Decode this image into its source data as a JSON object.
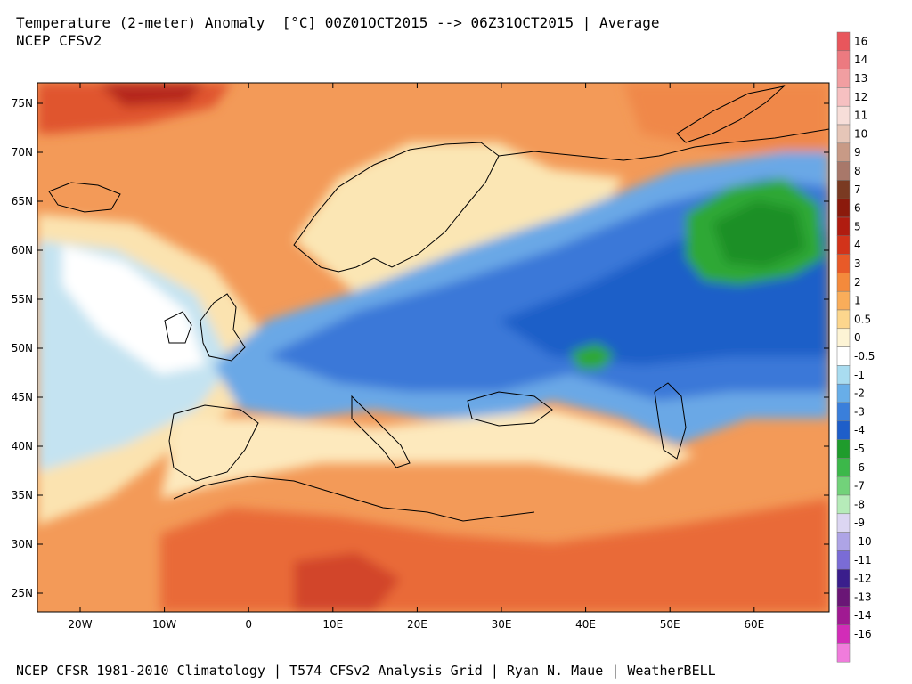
{
  "header": {
    "title": "Temperature (2-meter) Anomaly  [°C] 00Z01OCT2015 --> 06Z31OCT2015 | Average",
    "model": "NCEP CFSv2"
  },
  "footer": {
    "credits": "NCEP CFSR 1981-2010 Climatology | T574 CFSv2 Analysis Grid | Ryan N. Maue | WeatherBELL"
  },
  "map": {
    "lat_labels": [
      "75N",
      "70N",
      "65N",
      "60N",
      "55N",
      "50N",
      "45N",
      "40N",
      "35N",
      "30N",
      "25N"
    ],
    "lon_labels": [
      "20W",
      "10W",
      "0",
      "10E",
      "20E",
      "30E",
      "40E",
      "50E",
      "60E"
    ],
    "colors": {
      "very_warm": "#c0392b",
      "warm": "#ee7b43",
      "mild": "#f6a35f",
      "slight_warm": "#fbd28c",
      "neutral": "#fdf3d0",
      "slight_cool": "#b3dcef",
      "cool": "#6aa8e6",
      "cold": "#3b78d8",
      "very_cold": "#1f5fc8",
      "green": "#2fa836",
      "dark_green": "#1c8f28"
    }
  },
  "colorbar": {
    "levels": [
      {
        "label": "16",
        "color": "#e8565c"
      },
      {
        "label": "14",
        "color": "#ec7a80"
      },
      {
        "label": "13",
        "color": "#f19ea1"
      },
      {
        "label": "12",
        "color": "#f6c0c1"
      },
      {
        "label": "11",
        "color": "#f7ded9"
      },
      {
        "label": "10",
        "color": "#e6c6b8"
      },
      {
        "label": "9",
        "color": "#c89a86"
      },
      {
        "label": "8",
        "color": "#a8786a"
      },
      {
        "label": "7",
        "color": "#7a3a22"
      },
      {
        "label": "6",
        "color": "#8b1a0c"
      },
      {
        "label": "5",
        "color": "#b01c10"
      },
      {
        "label": "4",
        "color": "#d2331a"
      },
      {
        "label": "3",
        "color": "#e85a28"
      },
      {
        "label": "2",
        "color": "#f48a3c"
      },
      {
        "label": "1",
        "color": "#f9ad5a"
      },
      {
        "label": "0.5",
        "color": "#fcd68d"
      },
      {
        "label": "0",
        "color": "#fdf4d5"
      },
      {
        "label": "-0.5",
        "color": "#ffffff"
      },
      {
        "label": "-1",
        "color": "#a9dcf0"
      },
      {
        "label": "-2",
        "color": "#68aee8"
      },
      {
        "label": "-3",
        "color": "#3a7fdb"
      },
      {
        "label": "-4",
        "color": "#1e5ec9"
      },
      {
        "label": "-5",
        "color": "#1f9c2c"
      },
      {
        "label": "-6",
        "color": "#3cb84a"
      },
      {
        "label": "-7",
        "color": "#72d27a"
      },
      {
        "label": "-8",
        "color": "#b6ebb9"
      },
      {
        "label": "-9",
        "color": "#dcd6f2"
      },
      {
        "label": "-10",
        "color": "#aea4e6"
      },
      {
        "label": "-11",
        "color": "#7a6cd6"
      },
      {
        "label": "-12",
        "color": "#3a1e8c"
      },
      {
        "label": "-13",
        "color": "#6a1676"
      },
      {
        "label": "-14",
        "color": "#a01a92"
      },
      {
        "label": "-16",
        "color": "#d22cb8"
      },
      {
        "label": "",
        "color": "#f07cdc"
      }
    ]
  }
}
